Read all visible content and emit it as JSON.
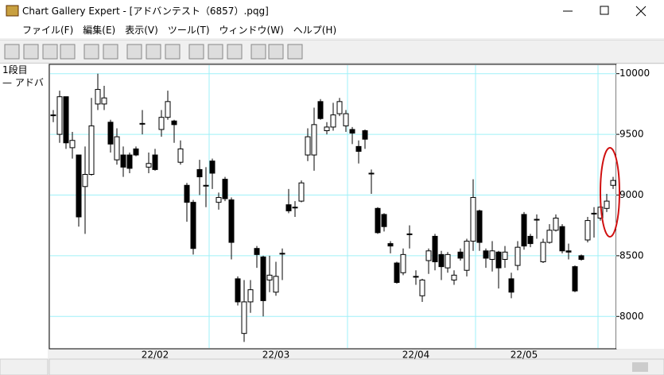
{
  "window": {
    "title": "Chart Gallery Expert - [アドバンテスト（6857）.pqg]",
    "menu": [
      "ファイル(F)",
      "編集(E)",
      "表示(V)",
      "ツール(T)",
      "ウィンドウ(W)",
      "ヘルプ(H)"
    ]
  },
  "side_panel": {
    "pane": "1段目",
    "legend": "— アドバ"
  },
  "chart_data": {
    "type": "candlestick",
    "categories": [
      null,
      null,
      null,
      null,
      null,
      null,
      null,
      null,
      null,
      null,
      null,
      null,
      null,
      null,
      null,
      null,
      "22/02",
      null,
      null,
      null,
      null,
      null,
      null,
      null,
      null,
      null,
      null,
      null,
      null,
      null,
      null,
      null,
      null,
      null,
      null,
      "22/03",
      null,
      null,
      null,
      null,
      null,
      null,
      null,
      null,
      null,
      null,
      null,
      null,
      null,
      null,
      null,
      null,
      null,
      null,
      null,
      null,
      null,
      "22/04",
      null,
      null,
      null,
      null,
      null,
      null,
      null,
      null,
      null,
      null,
      null,
      null,
      null,
      null,
      null,
      null,
      "22/05",
      null,
      null,
      null,
      null,
      null,
      null,
      null,
      null,
      null,
      null,
      null,
      null,
      null,
      null
    ],
    "open": [
      9660,
      9500,
      9810,
      9390,
      9330,
      9070,
      9170,
      9750,
      9750,
      9600,
      9290,
      9330,
      9330,
      9380,
      9590,
      9230,
      9330,
      9540,
      9640,
      9610,
      9270,
      9080,
      8940,
      9210,
      9080,
      9280,
      8940,
      9130,
      8960,
      8310,
      7860,
      8120,
      8560,
      8490,
      8300,
      8200,
      8520,
      8920,
      8900,
      8950,
      9330,
      9330,
      9770,
      9530,
      9560,
      9670,
      9570,
      9540,
      9400,
      9530,
      9180,
      8890,
      8840,
      8600,
      8440,
      8360,
      8680,
      8330,
      8170,
      8460,
      8660,
      8510,
      8400,
      8300,
      8530,
      8380,
      8620,
      8870,
      8540,
      8470,
      8530,
      8470,
      8310,
      8420,
      8840,
      8660,
      8800,
      8450,
      8610,
      8710,
      8740,
      8540,
      8410,
      8500,
      8630,
      8850,
      8810,
      8890,
      9080
    ],
    "high": [
      9700,
      9860,
      9810,
      9520,
      9330,
      9400,
      9800,
      10000,
      9900,
      9620,
      9550,
      9400,
      9350,
      9400,
      9700,
      9350,
      9380,
      9700,
      9860,
      9620,
      9450,
      9100,
      8960,
      9290,
      9230,
      9300,
      9020,
      9150,
      8980,
      8330,
      8300,
      8300,
      8580,
      8500,
      8500,
      8450,
      8560,
      9050,
      8950,
      9120,
      9550,
      9720,
      9790,
      9600,
      9760,
      9800,
      9700,
      9560,
      9450,
      9540,
      9210,
      8900,
      8850,
      8620,
      8450,
      8560,
      8750,
      8380,
      8310,
      8560,
      8680,
      8540,
      8530,
      8380,
      8560,
      8640,
      9130,
      8880,
      8560,
      8620,
      8540,
      8580,
      8360,
      8620,
      8860,
      8680,
      8840,
      8640,
      8760,
      8840,
      8760,
      8600,
      8420,
      8510,
      8820,
      8900,
      8960,
      9010,
      9150
    ],
    "low": [
      9600,
      9430,
      9380,
      9300,
      8740,
      8680,
      9160,
      9700,
      9700,
      9350,
      9250,
      9150,
      9180,
      9320,
      9500,
      9180,
      9200,
      9480,
      9620,
      9430,
      9250,
      8780,
      8510,
      9000,
      8900,
      9050,
      8880,
      8950,
      8470,
      8090,
      7790,
      8030,
      8400,
      8000,
      8200,
      8170,
      8300,
      8850,
      8820,
      8940,
      9280,
      9200,
      9620,
      9500,
      9530,
      9650,
      9520,
      9420,
      9260,
      9380,
      9010,
      8680,
      8700,
      8520,
      8270,
      8340,
      8560,
      8260,
      8120,
      8350,
      8380,
      8300,
      8360,
      8260,
      8460,
      8330,
      8540,
      8540,
      8400,
      8370,
      8230,
      8400,
      8150,
      8380,
      8550,
      8570,
      8640,
      8440,
      8600,
      8700,
      8520,
      8470,
      8200,
      8460,
      8610,
      8650,
      8790,
      8860,
      9050
    ],
    "close": [
      9660,
      9810,
      9430,
      9450,
      8820,
      9170,
      9570,
      9870,
      9800,
      9420,
      9480,
      9230,
      9220,
      9330,
      9590,
      9260,
      9210,
      9640,
      9770,
      9580,
      9380,
      8940,
      8560,
      9150,
      9080,
      9180,
      8980,
      8970,
      8610,
      8120,
      8120,
      8220,
      8510,
      8130,
      8340,
      8330,
      8520,
      8870,
      8900,
      9100,
      9480,
      9580,
      9630,
      9560,
      9660,
      9770,
      9670,
      9510,
      9360,
      9460,
      9180,
      8690,
      8740,
      8580,
      8280,
      8510,
      8680,
      8330,
      8300,
      8540,
      8450,
      8410,
      8510,
      8340,
      8480,
      8620,
      8980,
      8610,
      8480,
      8540,
      8400,
      8530,
      8200,
      8570,
      8580,
      8600,
      8800,
      8610,
      8710,
      8810,
      8540,
      8530,
      8210,
      8470,
      8790,
      8850,
      8900,
      8950,
      9120
    ],
    "up_color": "#ffffff",
    "down_color": "#000000",
    "ylim": [
      7740,
      10070
    ],
    "yticks": [
      8000,
      8500,
      9000,
      9500,
      10000
    ],
    "grid": true
  }
}
